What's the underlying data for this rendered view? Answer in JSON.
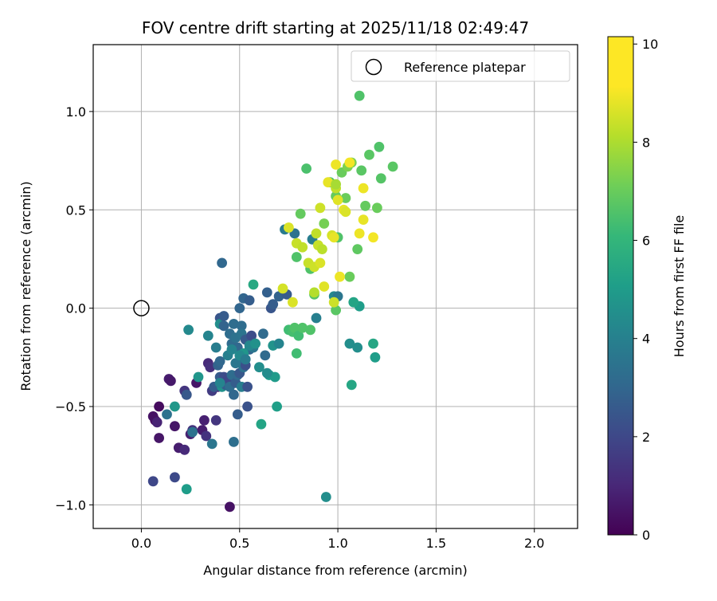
{
  "chart_data": {
    "type": "scatter",
    "title": "FOV centre drift starting at 2025/11/18 02:49:47",
    "xlabel": "Angular distance from reference (arcmin)",
    "ylabel": "Rotation from reference (arcmin)",
    "xlim": [
      -0.245,
      2.22
    ],
    "ylim": [
      -1.12,
      1.34
    ],
    "x_ticks": [
      0.0,
      0.5,
      1.0,
      1.5,
      2.0
    ],
    "x_tick_labels": [
      "0.0",
      "0.5",
      "1.0",
      "1.5",
      "2.0"
    ],
    "y_ticks": [
      -1.0,
      -0.5,
      0.0,
      0.5,
      1.0
    ],
    "y_tick_labels": [
      "−1.0",
      "−0.5",
      "0.0",
      "0.5",
      "1.0"
    ],
    "grid": true,
    "legend": {
      "position": "upper right",
      "entries": [
        "Reference platepar"
      ]
    },
    "reference_point": {
      "x": 0.0,
      "y": 0.0,
      "label": "Reference platepar",
      "marker": "open-circle"
    },
    "colorbar": {
      "label": "Hours from first FF file",
      "colormap": "viridis",
      "range": [
        0,
        10.15
      ],
      "ticks": [
        0,
        2,
        4,
        6,
        8,
        10
      ],
      "tick_labels": [
        "0",
        "2",
        "4",
        "6",
        "8",
        "10"
      ]
    },
    "points_columns": [
      "x",
      "y",
      "hours"
    ],
    "points": [
      [
        0.45,
        -1.01,
        0.5
      ],
      [
        0.07,
        -0.57,
        0.3
      ],
      [
        0.06,
        -0.55,
        0.5
      ],
      [
        0.08,
        -0.58,
        1.0
      ],
      [
        0.09,
        -0.5,
        0.3
      ],
      [
        0.09,
        -0.66,
        0.6
      ],
      [
        0.14,
        -0.36,
        0.8
      ],
      [
        0.15,
        -0.37,
        0.7
      ],
      [
        0.17,
        -0.6,
        0.6
      ],
      [
        0.19,
        -0.71,
        0.8
      ],
      [
        0.22,
        -0.72,
        1.2
      ],
      [
        0.22,
        -0.42,
        1.6
      ],
      [
        0.23,
        -0.44,
        1.0
      ],
      [
        0.25,
        -0.64,
        0.9
      ],
      [
        0.26,
        -0.62,
        1.5
      ],
      [
        0.28,
        -0.38,
        0.6
      ],
      [
        0.31,
        -0.62,
        0.8
      ],
      [
        0.32,
        -0.57,
        0.9
      ],
      [
        0.33,
        -0.65,
        1.5
      ],
      [
        0.34,
        -0.28,
        1.2
      ],
      [
        0.35,
        -0.3,
        1.4
      ],
      [
        0.36,
        -0.42,
        1.8
      ],
      [
        0.38,
        -0.57,
        1.6
      ],
      [
        0.39,
        -0.4,
        1.3
      ],
      [
        0.06,
        -0.88,
        2.2
      ],
      [
        0.17,
        -0.86,
        2.3
      ],
      [
        0.13,
        -0.54,
        3.8
      ],
      [
        0.17,
        -0.5,
        5.4
      ],
      [
        0.23,
        -0.92,
        5.6
      ],
      [
        0.23,
        -0.44,
        2.8
      ],
      [
        0.26,
        -0.63,
        3.8
      ],
      [
        0.29,
        -0.35,
        5.3
      ],
      [
        0.36,
        -0.69,
        4.0
      ],
      [
        0.37,
        -0.4,
        3.0
      ],
      [
        0.39,
        -0.29,
        3.2
      ],
      [
        0.4,
        -0.35,
        2.9
      ],
      [
        0.4,
        -0.27,
        3.4
      ],
      [
        0.41,
        -0.4,
        5.1
      ],
      [
        0.42,
        -0.35,
        2.4
      ],
      [
        0.43,
        -0.39,
        3.0
      ],
      [
        0.44,
        -0.36,
        2.2
      ],
      [
        0.45,
        -0.4,
        3.6
      ],
      [
        0.46,
        -0.34,
        3.6
      ],
      [
        0.47,
        -0.68,
        3.7
      ],
      [
        0.47,
        -0.44,
        3.4
      ],
      [
        0.48,
        -0.38,
        3.0
      ],
      [
        0.49,
        -0.34,
        3.5
      ],
      [
        0.49,
        -0.54,
        3.0
      ],
      [
        0.5,
        -0.27,
        3.6
      ],
      [
        0.5,
        -0.33,
        2.8
      ],
      [
        0.51,
        -0.4,
        4.3
      ],
      [
        0.52,
        -0.3,
        3.8
      ],
      [
        0.53,
        -0.29,
        2.5
      ],
      [
        0.54,
        -0.4,
        2.6
      ],
      [
        0.54,
        -0.5,
        2.6
      ],
      [
        0.55,
        -0.21,
        3.3
      ],
      [
        0.4,
        -0.05,
        2.7
      ],
      [
        0.4,
        -0.08,
        5.0
      ],
      [
        0.42,
        -0.09,
        3.2
      ],
      [
        0.42,
        -0.04,
        2.9
      ],
      [
        0.41,
        0.23,
        3.4
      ],
      [
        0.45,
        -0.13,
        3.6
      ],
      [
        0.46,
        -0.18,
        3.5
      ],
      [
        0.47,
        -0.08,
        3.6
      ],
      [
        0.48,
        -0.15,
        3.8
      ],
      [
        0.49,
        -0.2,
        3.4
      ],
      [
        0.5,
        0.0,
        3.3
      ],
      [
        0.51,
        -0.09,
        3.6
      ],
      [
        0.51,
        -0.13,
        3.9
      ],
      [
        0.52,
        0.05,
        3.3
      ],
      [
        0.52,
        -0.23,
        5.3
      ],
      [
        0.53,
        -0.16,
        2.9
      ],
      [
        0.55,
        0.04,
        3.0
      ],
      [
        0.56,
        -0.14,
        2.4
      ],
      [
        0.57,
        -0.2,
        4.0
      ],
      [
        0.58,
        -0.18,
        3.8
      ],
      [
        0.6,
        -0.3,
        5.0
      ],
      [
        0.61,
        -0.59,
        5.9
      ],
      [
        0.62,
        -0.13,
        3.5
      ],
      [
        0.63,
        -0.24,
        3.5
      ],
      [
        0.64,
        0.08,
        3.1
      ],
      [
        0.65,
        -0.34,
        5.5
      ],
      [
        0.66,
        0.0,
        2.7
      ],
      [
        0.67,
        0.02,
        3.0
      ],
      [
        0.67,
        -0.19,
        5.2
      ],
      [
        0.68,
        -0.35,
        5.5
      ],
      [
        0.69,
        -0.5,
        5.7
      ],
      [
        0.7,
        -0.18,
        4.6
      ],
      [
        0.7,
        0.06,
        3.2
      ],
      [
        0.74,
        0.07,
        2.9
      ],
      [
        0.57,
        0.12,
        6.1
      ],
      [
        0.24,
        -0.11,
        4.8
      ],
      [
        0.34,
        -0.14,
        4.6
      ],
      [
        0.38,
        -0.2,
        4.3
      ],
      [
        0.4,
        -0.38,
        4.6
      ],
      [
        0.44,
        -0.24,
        4.4
      ],
      [
        0.46,
        -0.21,
        4.6
      ],
      [
        0.48,
        -0.28,
        4.0
      ],
      [
        0.5,
        -0.24,
        4.8
      ],
      [
        0.53,
        -0.26,
        4.2
      ],
      [
        0.55,
        -0.19,
        4.7
      ],
      [
        0.58,
        -0.18,
        5.1
      ],
      [
        0.64,
        -0.33,
        4.9
      ],
      [
        0.73,
        0.4,
        4.2
      ],
      [
        0.78,
        0.38,
        3.8
      ],
      [
        0.87,
        0.35,
        4.3
      ],
      [
        0.89,
        -0.05,
        4.4
      ],
      [
        0.98,
        0.06,
        4.7
      ],
      [
        1.0,
        0.06,
        4.0
      ],
      [
        1.06,
        -0.18,
        5.0
      ],
      [
        1.07,
        -0.39,
        6.0
      ],
      [
        1.1,
        -0.2,
        5.0
      ],
      [
        1.11,
        0.01,
        5.6
      ],
      [
        1.18,
        -0.18,
        6.0
      ],
      [
        1.19,
        -0.25,
        5.6
      ],
      [
        1.08,
        0.03,
        5.9
      ],
      [
        0.94,
        -0.96,
        5.0
      ],
      [
        0.75,
        -0.11,
        7.0
      ],
      [
        0.77,
        -0.12,
        7.1
      ],
      [
        0.78,
        -0.1,
        7.3
      ],
      [
        0.79,
        -0.23,
        7.0
      ],
      [
        0.8,
        -0.14,
        7.0
      ],
      [
        0.82,
        -0.1,
        7.3
      ],
      [
        0.86,
        -0.11,
        7.3
      ],
      [
        0.79,
        0.26,
        7.3
      ],
      [
        0.81,
        0.48,
        7.7
      ],
      [
        0.84,
        0.71,
        7.2
      ],
      [
        0.86,
        0.2,
        7.3
      ],
      [
        0.88,
        0.07,
        7.4
      ],
      [
        0.93,
        0.43,
        8.0
      ],
      [
        0.96,
        0.64,
        7.2
      ],
      [
        0.99,
        0.57,
        7.7
      ],
      [
        0.99,
        -0.01,
        7.5
      ],
      [
        1.0,
        0.36,
        7.3
      ],
      [
        1.02,
        0.69,
        7.8
      ],
      [
        1.04,
        0.56,
        7.8
      ],
      [
        1.05,
        0.72,
        8.1
      ],
      [
        1.06,
        0.16,
        7.8
      ],
      [
        1.07,
        0.74,
        8.1
      ],
      [
        1.1,
        0.3,
        7.6
      ],
      [
        1.11,
        1.08,
        7.3
      ],
      [
        1.12,
        0.7,
        7.5
      ],
      [
        1.14,
        0.52,
        7.7
      ],
      [
        1.16,
        0.78,
        7.5
      ],
      [
        1.2,
        0.51,
        7.8
      ],
      [
        1.21,
        0.82,
        7.3
      ],
      [
        1.22,
        0.66,
        7.4
      ],
      [
        1.28,
        0.72,
        7.5
      ],
      [
        0.72,
        0.1,
        9.5
      ],
      [
        0.75,
        0.41,
        9.6
      ],
      [
        0.77,
        0.03,
        9.6
      ],
      [
        0.79,
        0.33,
        9.3
      ],
      [
        0.82,
        0.31,
        9.2
      ],
      [
        0.85,
        0.23,
        9.3
      ],
      [
        0.88,
        0.21,
        9.4
      ],
      [
        0.89,
        0.38,
        9.2
      ],
      [
        0.9,
        0.32,
        9.3
      ],
      [
        0.91,
        0.51,
        9.4
      ],
      [
        0.91,
        0.23,
        9.6
      ],
      [
        0.93,
        0.11,
        9.7
      ],
      [
        0.95,
        0.64,
        9.8
      ],
      [
        0.97,
        0.37,
        9.5
      ],
      [
        0.98,
        0.36,
        9.8
      ],
      [
        0.98,
        0.03,
        9.4
      ],
      [
        0.99,
        0.61,
        9.2
      ],
      [
        0.99,
        0.73,
        9.9
      ],
      [
        1.0,
        0.55,
        9.7
      ],
      [
        1.01,
        0.16,
        9.9
      ],
      [
        1.03,
        0.5,
        9.8
      ],
      [
        1.04,
        0.49,
        9.6
      ],
      [
        1.06,
        0.74,
        10.0
      ],
      [
        1.11,
        0.38,
        9.9
      ],
      [
        1.13,
        0.61,
        9.9
      ],
      [
        1.13,
        0.45,
        9.8
      ],
      [
        1.18,
        0.36,
        10.0
      ],
      [
        0.88,
        0.08,
        9.0
      ],
      [
        0.92,
        0.3,
        9.1
      ],
      [
        0.99,
        0.63,
        8.8
      ]
    ]
  }
}
